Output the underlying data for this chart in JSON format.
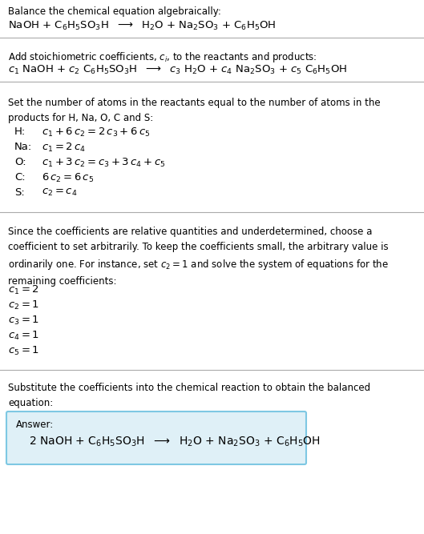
{
  "background_color": "#ffffff",
  "answer_box_color": "#dff0f7",
  "answer_box_border": "#7ec8e3",
  "text_color": "#000000",
  "section1_title": "Balance the chemical equation algebraically:",
  "section1_eq": "NaOH + C$_6$H$_5$SO$_3$H  $\\longrightarrow$  H$_2$O + Na$_2$SO$_3$ + C$_6$H$_5$OH",
  "section2_title": "Add stoichiometric coefficients, $c_i$, to the reactants and products:",
  "section2_eq": "$c_1$ NaOH + $c_2$ C$_6$H$_5$SO$_3$H  $\\longrightarrow$  $c_3$ H$_2$O + $c_4$ Na$_2$SO$_3$ + $c_5$ C$_6$H$_5$OH",
  "section3_title": "Set the number of atoms in the reactants equal to the number of atoms in the\nproducts for H, Na, O, C and S:",
  "section3_eqs_label": [
    "H:",
    "Na:",
    "O:",
    "C:",
    "S:"
  ],
  "section3_eqs_math": [
    "$c_1 + 6\\,c_2 = 2\\,c_3 + 6\\,c_5$",
    "$c_1 = 2\\,c_4$",
    "$c_1 + 3\\,c_2 = c_3 + 3\\,c_4 + c_5$",
    "$6\\,c_2 = 6\\,c_5$",
    "$c_2 = c_4$"
  ],
  "section4_title": "Since the coefficients are relative quantities and underdetermined, choose a\ncoefficient to set arbitrarily. To keep the coefficients small, the arbitrary value is\nordinarily one. For instance, set $c_2 = 1$ and solve the system of equations for the\nremaining coefficients:",
  "section4_solutions": [
    "$c_1 = 2$",
    "$c_2 = 1$",
    "$c_3 = 1$",
    "$c_4 = 1$",
    "$c_5 = 1$"
  ],
  "section5_title": "Substitute the coefficients into the chemical reaction to obtain the balanced\nequation:",
  "answer_label": "Answer:",
  "answer_eq": "2 NaOH + C$_6$H$_5$SO$_3$H  $\\longrightarrow$  H$_2$O + Na$_2$SO$_3$ + C$_6$H$_5$OH",
  "fs_body": 8.5,
  "fs_eq": 9.5,
  "fs_answer": 10.0
}
